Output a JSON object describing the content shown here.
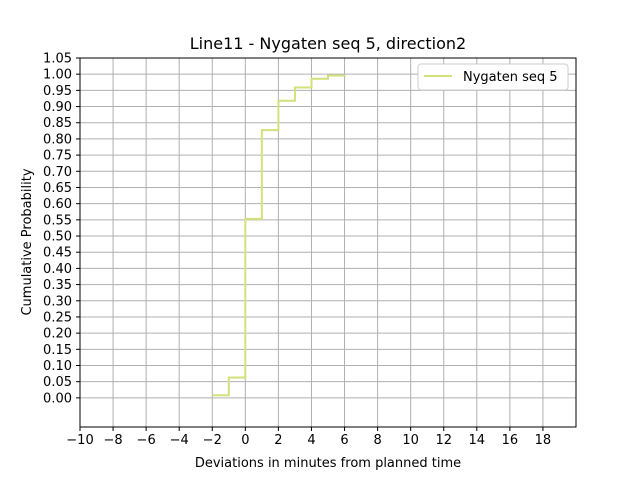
{
  "chart_data": {
    "type": "line",
    "title": "Line11 - Nygaten seq 5, direction2",
    "xlabel": "Deviations in minutes from planned time",
    "ylabel": "Cumulative Probability",
    "xlim": [
      -10,
      20
    ],
    "ylim": [
      -0.09,
      1.05
    ],
    "xticks": [
      -10,
      -8,
      -6,
      -4,
      -2,
      0,
      2,
      4,
      6,
      8,
      10,
      12,
      14,
      16,
      18
    ],
    "xtick_labels": [
      "−10",
      "−8",
      "−6",
      "−4",
      "−2",
      "0",
      "2",
      "4",
      "6",
      "8",
      "10",
      "12",
      "14",
      "16",
      "18"
    ],
    "yticks": [
      0,
      0.05,
      0.1,
      0.15,
      0.2,
      0.25,
      0.3,
      0.35,
      0.4,
      0.45,
      0.5,
      0.55,
      0.6,
      0.65,
      0.7,
      0.75,
      0.8,
      0.85,
      0.9,
      0.95,
      1.0,
      1.05
    ],
    "ytick_labels": [
      "0.00",
      "0.05",
      "0.10",
      "0.15",
      "0.20",
      "0.25",
      "0.30",
      "0.35",
      "0.40",
      "0.45",
      "0.50",
      "0.55",
      "0.60",
      "0.65",
      "0.70",
      "0.75",
      "0.80",
      "0.85",
      "0.90",
      "0.95",
      "1.00",
      "1.05"
    ],
    "grid": true,
    "legend_position": "top-right",
    "series": [
      {
        "name": "Nygaten seq 5",
        "color": "#d4e17a",
        "step": "post",
        "x": [
          -2,
          -1,
          0,
          1,
          2,
          3,
          4,
          5,
          6
        ],
        "y": [
          0.008,
          0.063,
          0.553,
          0.827,
          0.918,
          0.959,
          0.986,
          0.996,
          0.998
        ]
      }
    ]
  }
}
